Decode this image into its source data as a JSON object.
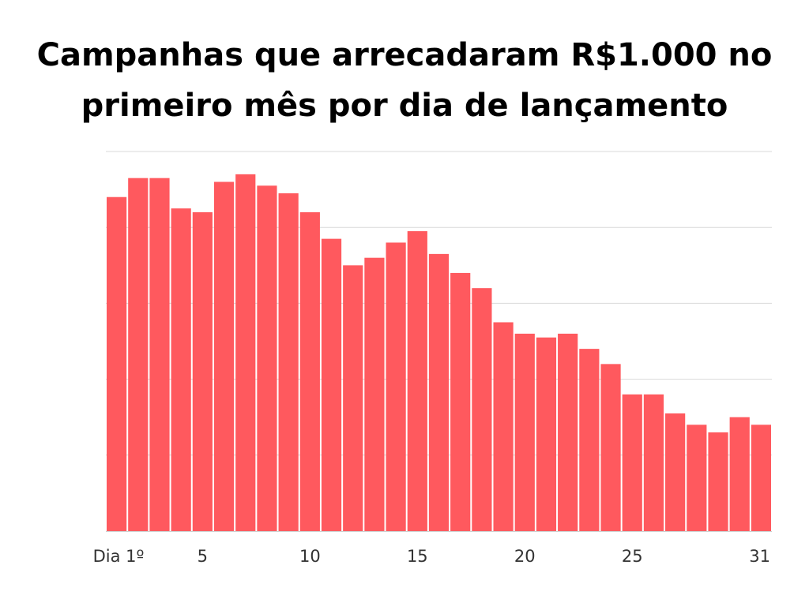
{
  "title_lines": [
    "Campanhas que arrecadaram R$1.000 no",
    "primeiro mês por dia de lançamento"
  ],
  "colors": {
    "bar": "#ff595e",
    "grid": "#d9d9d9",
    "axis": "#cccccc",
    "text": "#333333"
  },
  "chart_data": {
    "type": "bar",
    "title": "Campanhas que arrecadaram R$1.000 no primeiro mês por dia de lançamento",
    "xlabel": "",
    "ylabel": "",
    "categories": [
      1,
      2,
      3,
      4,
      5,
      6,
      7,
      8,
      9,
      10,
      11,
      12,
      13,
      14,
      15,
      16,
      17,
      18,
      19,
      20,
      21,
      22,
      23,
      24,
      25,
      26,
      27,
      28,
      29,
      30,
      31
    ],
    "values": [
      88,
      93,
      93,
      85,
      84,
      92,
      94,
      91,
      89,
      84,
      77,
      70,
      72,
      76,
      79,
      73,
      68,
      64,
      55,
      52,
      51,
      52,
      48,
      44,
      36,
      36,
      31,
      28,
      26,
      30,
      28
    ],
    "ylim": [
      0,
      100
    ],
    "y_gridlines": [
      20,
      40,
      60,
      80,
      100
    ],
    "y_tick_labels_shown": false,
    "x_tick_labels": [
      {
        "category": 1,
        "label": "Dia 1º"
      },
      {
        "category": 5,
        "label": "5"
      },
      {
        "category": 10,
        "label": "10"
      },
      {
        "category": 15,
        "label": "15"
      },
      {
        "category": 20,
        "label": "20"
      },
      {
        "category": 25,
        "label": "25"
      },
      {
        "category": 31,
        "label": "31"
      }
    ],
    "grid": true,
    "legend": "none"
  }
}
